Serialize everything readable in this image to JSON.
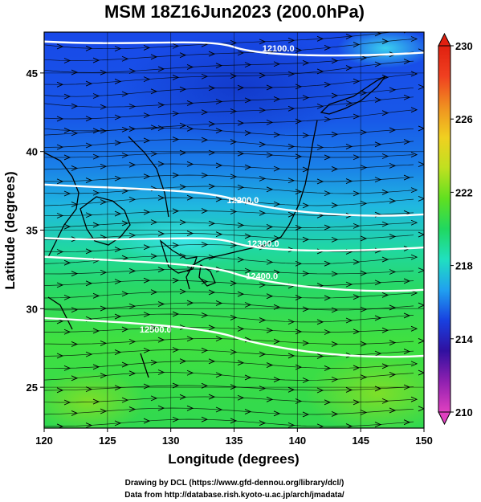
{
  "title": "MSM 18Z16Jun2023 (200.0hPa)",
  "x_axis": {
    "label": "Longitude (degrees)",
    "range": [
      120,
      150
    ],
    "ticks": [
      120,
      125,
      130,
      135,
      140,
      145,
      150
    ]
  },
  "y_axis": {
    "label": "Latitude  (degrees)",
    "range": [
      22.4,
      47.6
    ],
    "ticks": [
      25,
      30,
      35,
      40,
      45
    ]
  },
  "colorbar": {
    "min": 210,
    "max": 230,
    "ticks": [
      210,
      214,
      218,
      222,
      226,
      230
    ],
    "colors": [
      "#e040c0",
      "#9020b0",
      "#3010a0",
      "#1840e0",
      "#20a0f0",
      "#20e0c0",
      "#20d860",
      "#60e020",
      "#c0e020",
      "#f0d020",
      "#f09020",
      "#f04020",
      "#e02010"
    ]
  },
  "contours": [
    {
      "label": "12100.0",
      "lat_start": 47.0,
      "lat_end": 46.3,
      "label_lon": 138.5
    },
    {
      "label": "12200.0",
      "lat_start": 37.9,
      "lat_end": 36.0,
      "label_lon": 135.7
    },
    {
      "label": "12300.0",
      "lat_start": 34.5,
      "lat_end": 33.9,
      "label_lon": 137.3
    },
    {
      "label": "12400.0",
      "lat_start": 33.3,
      "lat_end": 31.2,
      "label_lon": 137.2
    },
    {
      "label": "12500.0",
      "lat_start": 29.4,
      "lat_end": 27.0,
      "label_lon": 128.8
    }
  ],
  "grid": "on",
  "coastlines": "Japan and East Asia",
  "credits": [
    "Drawing by DCL (https://www.gfd-dennou.org/library/dcl/)",
    "Data from http://database.rish.kyoto-u.ac.jp/arch/jmadata/"
  ]
}
